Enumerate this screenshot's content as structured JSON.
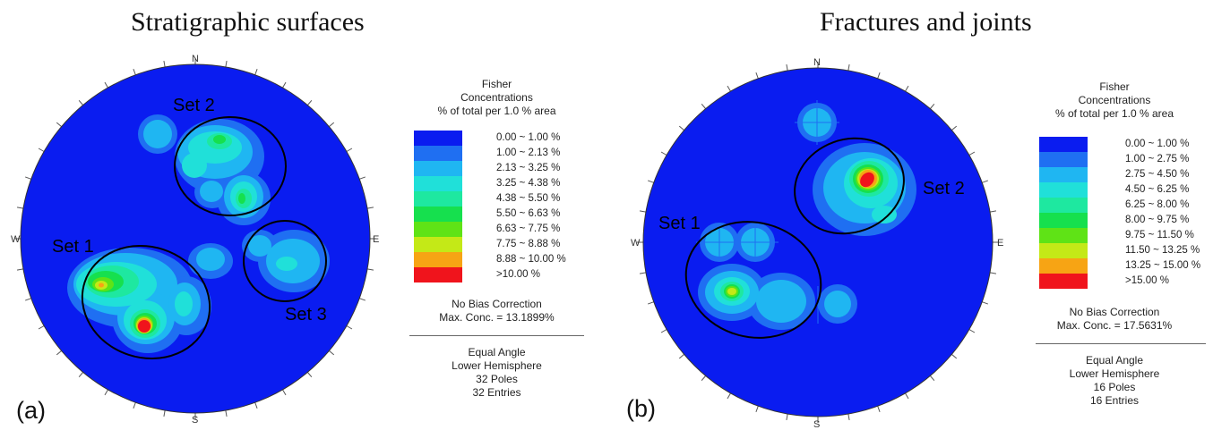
{
  "panel_a": {
    "title": "Stratigraphic surfaces",
    "label": "(a)",
    "directions": {
      "n": "N",
      "s": "S",
      "e": "E",
      "w": "W"
    },
    "set_labels": [
      "Set 1",
      "Set 2",
      "Set 3"
    ],
    "legend": {
      "title_lines": [
        "Fisher",
        "Concentrations",
        "% of total per 1.0 % area"
      ],
      "rows": [
        {
          "label": "0.00 ~  1.00 %",
          "color": "#0a1cf0"
        },
        {
          "label": "1.00 ~  2.13 %",
          "color": "#1f6ff2"
        },
        {
          "label": "2.13 ~  3.25 %",
          "color": "#1fb6f2"
        },
        {
          "label": "3.25 ~  4.38 %",
          "color": "#20e0d9"
        },
        {
          "label": "4.38 ~  5.50 %",
          "color": "#1ee8a0"
        },
        {
          "label": "5.50 ~  6.63 %",
          "color": "#16e04e"
        },
        {
          "label": "6.63 ~  7.75 %",
          "color": "#5fe316"
        },
        {
          "label": "7.75 ~  8.88 %",
          "color": "#c4e917"
        },
        {
          "label": "8.88 ~ 10.00 %",
          "color": "#f7a414"
        },
        {
          "label": ">10.00 %",
          "color": "#f0141c"
        }
      ],
      "bias": "No Bias Correction",
      "max_conc": "Max. Conc. = 13.1899%",
      "projection": "Equal Angle",
      "hemisphere": "Lower Hemisphere",
      "poles": "32 Poles",
      "entries": "32 Entries"
    }
  },
  "panel_b": {
    "title": "Fractures and joints",
    "label": "(b)",
    "directions": {
      "n": "N",
      "s": "S",
      "e": "E",
      "w": "W"
    },
    "set_labels": [
      "Set 1",
      "Set 2"
    ],
    "legend": {
      "title_lines": [
        "Fisher",
        "Concentrations",
        "% of total per 1.0 % area"
      ],
      "rows": [
        {
          "label": "0.00 ~  1.00 %",
          "color": "#0a1cf0"
        },
        {
          "label": "1.00 ~  2.75 %",
          "color": "#1f6ff2"
        },
        {
          "label": "2.75 ~  4.50 %",
          "color": "#1fb6f2"
        },
        {
          "label": "4.50 ~  6.25 %",
          "color": "#20e0d9"
        },
        {
          "label": "6.25 ~  8.00 %",
          "color": "#1ee8a0"
        },
        {
          "label": "8.00 ~  9.75 %",
          "color": "#16e04e"
        },
        {
          "label": "9.75 ~ 11.50 %",
          "color": "#5fe316"
        },
        {
          "label": "11.50 ~ 13.25 %",
          "color": "#c4e917"
        },
        {
          "label": "13.25 ~ 15.00 %",
          "color": "#f7a414"
        },
        {
          "label": ">15.00 %",
          "color": "#f0141c"
        }
      ],
      "bias": "No Bias Correction",
      "max_conc": "Max. Conc. = 17.5631%",
      "projection": "Equal Angle",
      "hemisphere": "Lower Hemisphere",
      "poles": "16 Poles",
      "entries": "16 Entries"
    }
  }
}
